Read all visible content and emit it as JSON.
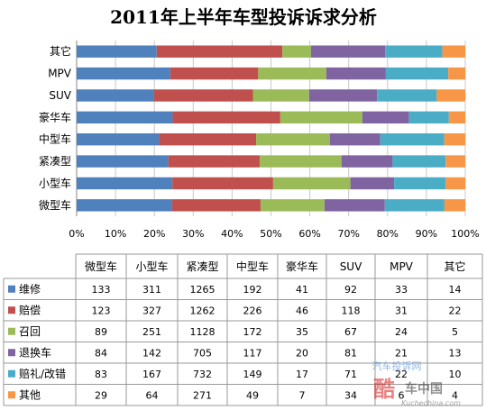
{
  "title": "2011年上半年车型投诉诉求分析",
  "chart_data": {
    "type": "bar",
    "orientation": "horizontal",
    "stacked": "percent",
    "title": "2011年上半年车型投诉诉求分析",
    "categories": [
      "微型车",
      "小型车",
      "紧凑型",
      "中型车",
      "豪华车",
      "SUV",
      "MPV",
      "其它"
    ],
    "series": [
      {
        "name": "维修",
        "color": "#4f81bd",
        "values": [
          133,
          311,
          1265,
          192,
          41,
          92,
          33,
          14
        ]
      },
      {
        "name": "赔偿",
        "color": "#c0504d",
        "values": [
          123,
          327,
          1262,
          226,
          46,
          118,
          31,
          22
        ]
      },
      {
        "name": "召回",
        "color": "#9bbb59",
        "values": [
          89,
          251,
          1128,
          172,
          35,
          67,
          24,
          5
        ]
      },
      {
        "name": "退换车",
        "color": "#8064a2",
        "values": [
          84,
          142,
          705,
          117,
          20,
          81,
          21,
          13
        ]
      },
      {
        "name": "赔礼/改错",
        "color": "#4bacc6",
        "values": [
          83,
          167,
          732,
          149,
          17,
          71,
          22,
          10
        ]
      },
      {
        "name": "其他",
        "color": "#f79646",
        "values": [
          29,
          64,
          271,
          49,
          7,
          34,
          6,
          4
        ]
      }
    ],
    "x_ticks": [
      "0%",
      "10%",
      "20%",
      "30%",
      "40%",
      "50%",
      "60%",
      "70%",
      "80%",
      "90%",
      "100%"
    ],
    "xlim": [
      0,
      100
    ],
    "grid": "vertical",
    "legend": "data-table"
  },
  "watermark": {
    "line1": "汽车投诉网",
    "brand": "车中国",
    "brand_prefix": "酷",
    "url": "Kuchechina.com"
  },
  "colors": {
    "grid": "#c8c8c8",
    "axis": "#868686",
    "table_border": "#9a9a9a"
  }
}
